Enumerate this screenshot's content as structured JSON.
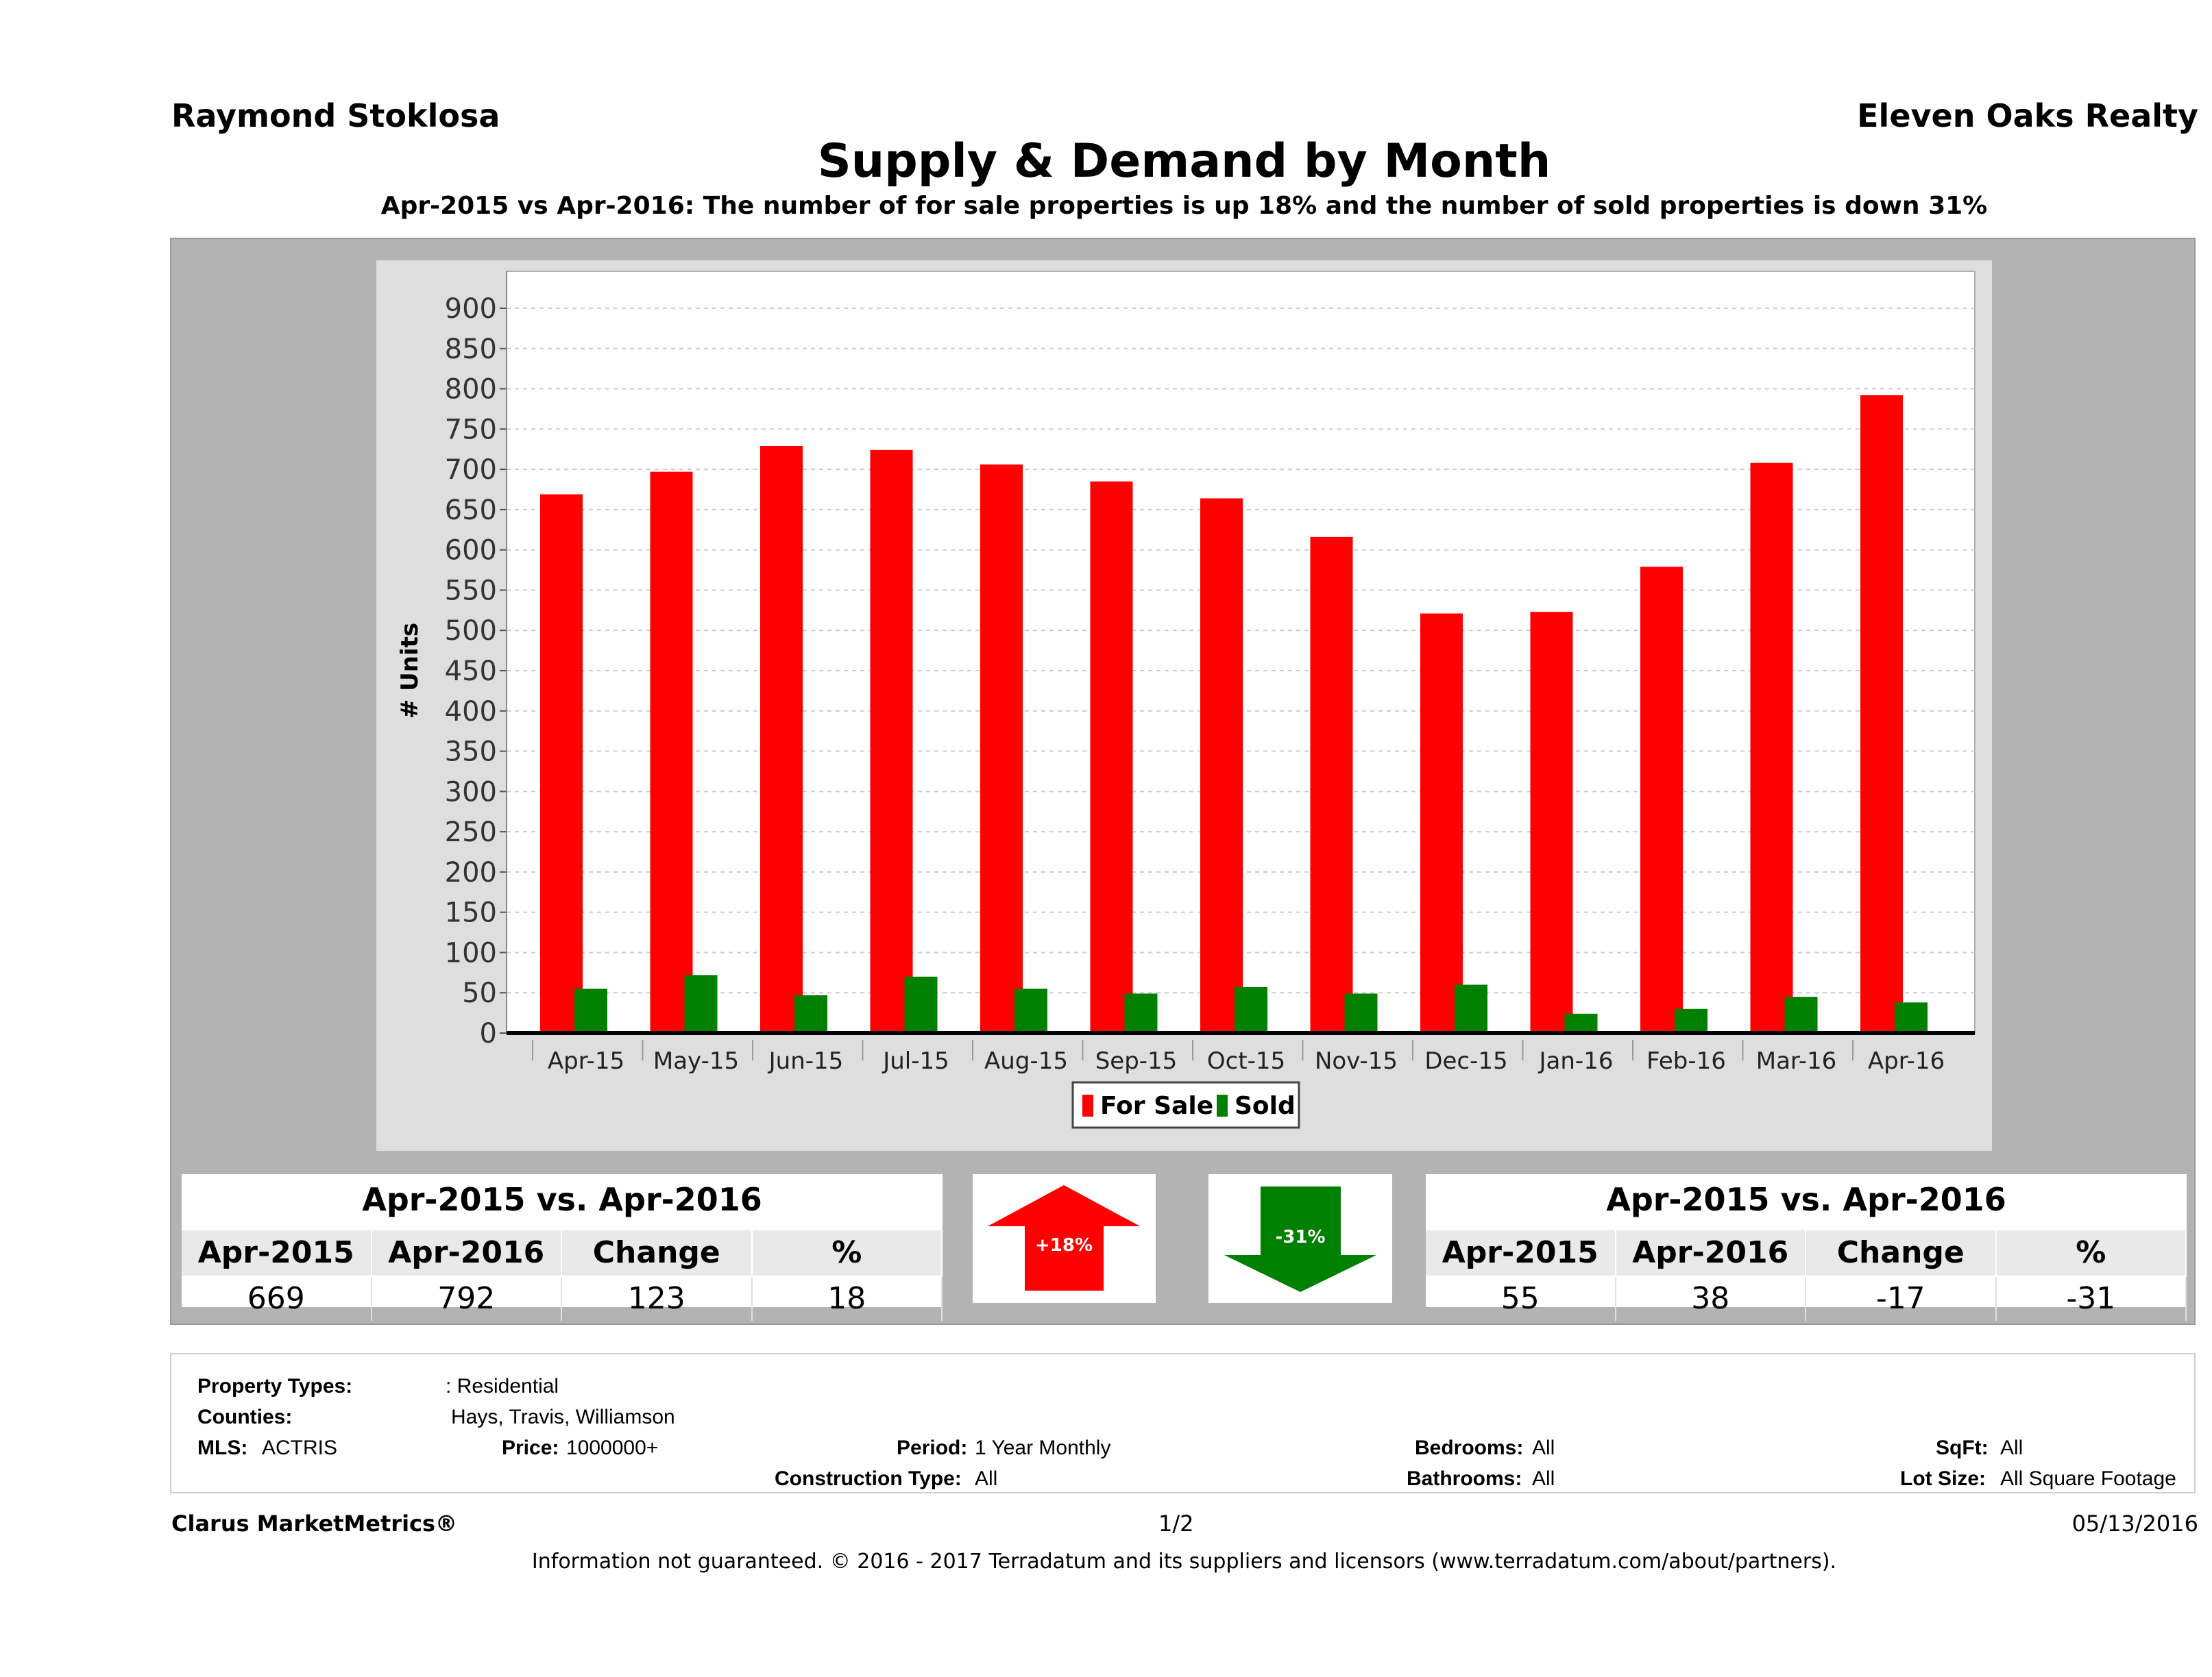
{
  "header": {
    "agent": "Raymond Stoklosa",
    "brokerage": "Eleven Oaks Realty",
    "title": "Supply & Demand by Month",
    "subtitle": "Apr-2015 vs Apr-2016: The number of for sale properties is up 18% and the number of sold properties is down 31%"
  },
  "chart_data": {
    "type": "bar",
    "categories": [
      "Apr-15",
      "May-15",
      "Jun-15",
      "Jul-15",
      "Aug-15",
      "Sep-15",
      "Oct-15",
      "Nov-15",
      "Dec-15",
      "Jan-16",
      "Feb-16",
      "Mar-16",
      "Apr-16"
    ],
    "series": [
      {
        "name": "For Sale",
        "color": "#ff0000",
        "values": [
          669,
          697,
          729,
          724,
          706,
          685,
          664,
          616,
          521,
          523,
          579,
          708,
          792
        ]
      },
      {
        "name": "Sold",
        "color": "#007f00",
        "values": [
          55,
          72,
          47,
          70,
          55,
          49,
          57,
          49,
          60,
          24,
          30,
          45,
          38
        ]
      }
    ],
    "ylabel": "# Units",
    "xlabel": "",
    "ylim": [
      0,
      900
    ],
    "yticks": [
      0,
      50,
      100,
      150,
      200,
      250,
      300,
      350,
      400,
      450,
      500,
      550,
      600,
      650,
      700,
      750,
      800,
      850,
      900
    ],
    "grid": true,
    "legend": "bottom"
  },
  "for_sale_stats": {
    "title": "Apr-2015 vs. Apr-2016",
    "headers": [
      "Apr-2015",
      "Apr-2016",
      "Change",
      "%"
    ],
    "values": [
      "669",
      "792",
      "123",
      "18"
    ],
    "badge": "+18%",
    "direction": "up",
    "color": "#ff0000"
  },
  "sold_stats": {
    "title": "Apr-2015 vs. Apr-2016",
    "headers": [
      "Apr-2015",
      "Apr-2016",
      "Change",
      "%"
    ],
    "values": [
      "55",
      "38",
      "-17",
      "-31"
    ],
    "badge": "-31%",
    "direction": "down",
    "color": "#008000"
  },
  "info": {
    "property_types_label": "Property Types:",
    "property_types_value": ": Residential",
    "counties_label": "Counties:",
    "counties_value": "Hays, Travis, Williamson",
    "mls_label": "MLS:",
    "mls_value": "ACTRIS",
    "price_label": "Price:",
    "price_value": "1000000+",
    "period_label": "Period:",
    "period_value": "1 Year Monthly",
    "construction_label": "Construction Type:",
    "construction_value": "All",
    "bedrooms_label": "Bedrooms:",
    "bedrooms_value": "All",
    "bathrooms_label": "Bathrooms:",
    "bathrooms_value": "All",
    "sqft_label": "SqFt:",
    "sqft_value": "All",
    "lotsize_label": "Lot Size:",
    "lotsize_value": "All Square Footage"
  },
  "footer": {
    "brand": "Clarus MarketMetrics®",
    "page": "1/2",
    "date": "05/13/2016",
    "disclaimer": "Information not guaranteed. © 2016 - 2017 Terradatum and its suppliers and licensors (www.terradatum.com/about/partners)."
  }
}
